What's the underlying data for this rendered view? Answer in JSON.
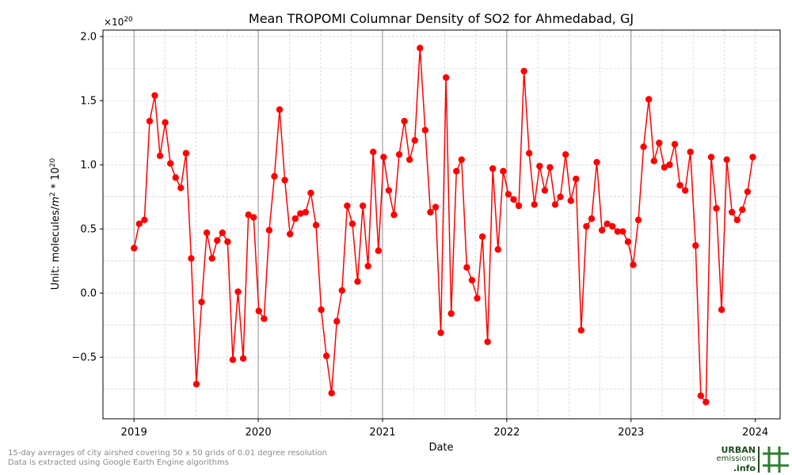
{
  "chart_data": {
    "type": "line",
    "title": "Mean TROPOMI Columnar Density of SO2 for Ahmedabad, GJ",
    "xlabel": "Date",
    "ylabel_prefix": "Unit: molecules/",
    "ylabel_base": "m",
    "ylabel_exp": "2",
    "ylabel_mid": " * 10",
    "ylabel_exp2": "20",
    "y_multiplier_base": "×10",
    "y_multiplier_exp": "20",
    "xlim": [
      2018.75,
      2024.2
    ],
    "ylim": [
      -0.98,
      2.05
    ],
    "yticks": [
      -0.5,
      0.0,
      0.5,
      1.0,
      1.5,
      2.0
    ],
    "ytick_labels": [
      "−0.5",
      "0.0",
      "0.5",
      "1.0",
      "1.5",
      "2.0"
    ],
    "xticks": [
      2019,
      2020,
      2021,
      2022,
      2023,
      2024
    ],
    "xtick_labels": [
      "2019",
      "2020",
      "2021",
      "2022",
      "2023",
      "2024"
    ],
    "year_lines": [
      2019,
      2020,
      2021,
      2022,
      2023
    ],
    "grid": true,
    "series": [
      {
        "color": "#ff0000",
        "values": [
          0.35,
          0.54,
          0.57,
          1.34,
          1.54,
          1.07,
          1.33,
          1.01,
          0.9,
          0.82,
          1.09,
          0.27,
          -0.71,
          -0.07,
          0.47,
          0.27,
          0.41,
          0.47,
          0.4,
          -0.52,
          0.01,
          -0.51,
          0.61,
          0.59,
          -0.14,
          -0.2,
          0.49,
          0.91,
          1.43,
          0.88,
          0.46,
          0.58,
          0.62,
          0.63,
          0.78,
          0.53,
          -0.13,
          -0.49,
          -0.78,
          -0.22,
          0.02,
          0.68,
          0.54,
          0.09,
          0.68,
          0.21,
          1.1,
          0.33,
          1.06,
          0.8,
          0.61,
          1.08,
          1.34,
          1.04,
          1.19,
          1.91,
          1.27,
          0.63,
          0.67,
          -0.31,
          1.68,
          -0.16,
          0.95,
          1.04,
          0.2,
          0.1,
          -0.04,
          0.44,
          -0.38,
          0.97,
          0.34,
          0.95,
          0.77,
          0.73,
          0.68,
          1.73,
          1.09,
          0.69,
          0.99,
          0.8,
          0.98,
          0.69,
          0.75,
          1.08,
          0.72,
          0.89,
          -0.29,
          0.52,
          0.58,
          1.02,
          0.49,
          0.54,
          0.52,
          0.48,
          0.48,
          0.4,
          0.22,
          0.57,
          1.14,
          1.51,
          1.03,
          1.17,
          0.98,
          1.0,
          1.16,
          0.84,
          0.8,
          1.1,
          0.37,
          -0.8,
          -0.85,
          1.06,
          0.66,
          -0.13,
          1.04,
          0.63,
          0.57,
          0.65,
          0.79,
          1.06
        ]
      }
    ]
  },
  "footnote": {
    "line1": "15-day averages of city airshed covering 50 x 50 grids of 0.01 degree resolution",
    "line2": "Data is extracted using Google Earth Engine algorithms"
  },
  "logo": {
    "line1": "URBAN",
    "line2": "emissions",
    "line3": ".info",
    "color_dark": "#1f4e1f",
    "color_green": "#2e7d32"
  }
}
